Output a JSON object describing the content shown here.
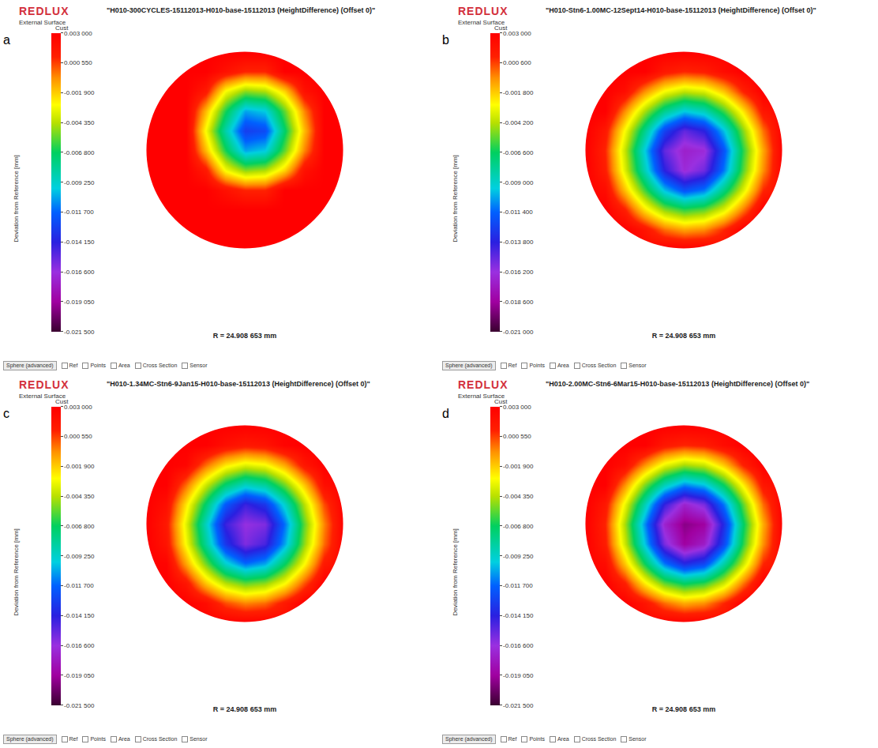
{
  "chart_data": [
    {
      "type": "heatmap",
      "panel_label": "a",
      "logo": "REDLUX",
      "subtitle": "External Surface",
      "colorbar_title": "Cust",
      "title": "\"H010-300CYCLES-15112013-H010-base-15112013 (HeightDifference) (Offset 0)\"",
      "ylabel": "Deviation from Reference [mm]",
      "x": [
        -25,
        -20,
        -15,
        -10,
        -5,
        0,
        5,
        10,
        15,
        20,
        25
      ],
      "y": [
        -25,
        -20,
        -15,
        -10,
        -5,
        0,
        5,
        10,
        15,
        20,
        25
      ],
      "z": [
        [
          null,
          null,
          null,
          null,
          0.003,
          0.003,
          0.003,
          null,
          null,
          null,
          null
        ],
        [
          null,
          null,
          0.003,
          0.003,
          0.003,
          0.003,
          0.003,
          0.003,
          0.003,
          null,
          null
        ],
        [
          null,
          0.003,
          0.003,
          0.003,
          0.003,
          0.003,
          0.003,
          0.003,
          0.003,
          0.003,
          null
        ],
        [
          null,
          0.003,
          0.003,
          0.003,
          0.002,
          0.001,
          0.001,
          0.003,
          0.003,
          0.003,
          null
        ],
        [
          0.003,
          0.003,
          0.003,
          0.0015,
          -0.003,
          -0.005,
          -0.0045,
          -0.002,
          0.002,
          0.003,
          0.003
        ],
        [
          0.003,
          0.003,
          0.003,
          -0.0015,
          -0.0065,
          -0.0105,
          -0.0098,
          -0.0055,
          -0.0005,
          0.003,
          0.003
        ],
        [
          0.003,
          0.003,
          0.003,
          -0.003,
          -0.0085,
          -0.013,
          -0.0125,
          -0.007,
          -0.0015,
          0.003,
          0.003
        ],
        [
          null,
          0.003,
          0.003,
          -0.0015,
          -0.0065,
          -0.0105,
          -0.0098,
          -0.0055,
          -0.0005,
          0.003,
          null
        ],
        [
          null,
          0.003,
          0.003,
          0.0015,
          -0.003,
          -0.005,
          -0.0045,
          -0.002,
          0.002,
          0.003,
          null
        ],
        [
          null,
          null,
          0.003,
          0.003,
          0.002,
          0.001,
          0.001,
          0.003,
          0.003,
          null,
          null
        ],
        [
          null,
          null,
          null,
          null,
          0.003,
          0.003,
          0.003,
          null,
          null,
          null,
          null
        ]
      ],
      "xlim": [
        -30,
        30
      ],
      "ylim": [
        -30,
        30
      ],
      "grid": false,
      "tick_labels": false,
      "colorbar_range": [
        -0.0215,
        0.003
      ],
      "colorbar_ticks": [
        {
          "value": 0.003,
          "label": "0.003 000"
        },
        {
          "value": 0.00055,
          "label": "0.000 550"
        },
        {
          "value": -0.0019,
          "label": "-0.001 900"
        },
        {
          "value": -0.00435,
          "label": "-0.004 350"
        },
        {
          "value": -0.0068,
          "label": "-0.006 800"
        },
        {
          "value": -0.00925,
          "label": "-0.009 250"
        },
        {
          "value": -0.0117,
          "label": "-0.011 700"
        },
        {
          "value": -0.01415,
          "label": "-0.014 150"
        },
        {
          "value": -0.0166,
          "label": "-0.016 600"
        },
        {
          "value": -0.01905,
          "label": "-0.019 050"
        },
        {
          "value": -0.0215,
          "label": "-0.021 500"
        }
      ],
      "radius": {
        "value": 24.908653,
        "label": "R = 24.908 653 mm"
      },
      "toolbar": [
        "Sphere (advanced)",
        "Ref",
        "Points",
        "Area",
        "Cross Section",
        "Sensor"
      ]
    },
    {
      "type": "heatmap",
      "panel_label": "b",
      "logo": "REDLUX",
      "subtitle": "External Surface",
      "colorbar_title": "Cust",
      "title": "\"H010-Stn6-1.00MC-12Sept14-H010-base-15112013 (HeightDifference) (Offset 0)\"",
      "ylabel": "Deviation from Reference [mm]",
      "x": [
        -25,
        -20,
        -15,
        -10,
        -5,
        0,
        5,
        10,
        15,
        20,
        25
      ],
      "y": [
        -25,
        -20,
        -15,
        -10,
        -5,
        0,
        5,
        10,
        15,
        20,
        25
      ],
      "z": [
        [
          null,
          null,
          null,
          null,
          0.003,
          0.003,
          0.003,
          null,
          null,
          null,
          null
        ],
        [
          null,
          null,
          0.003,
          0.0018,
          -0.0001,
          -0.001,
          -0.0006,
          0.001,
          0.003,
          null,
          null
        ],
        [
          null,
          0.003,
          0.0012,
          -0.0022,
          -0.0048,
          -0.006,
          -0.0054,
          -0.0034,
          -0.0002,
          0.003,
          null
        ],
        [
          null,
          0.0023,
          -0.0016,
          -0.0058,
          -0.0098,
          -0.012,
          -0.011,
          -0.0074,
          -0.0034,
          0.001,
          null
        ],
        [
          0.003,
          0.0013,
          -0.0035,
          -0.0086,
          -0.0138,
          -0.0165,
          -0.0153,
          -0.011,
          -0.0054,
          -0.0006,
          0.003
        ],
        [
          0.003,
          0.001,
          -0.004,
          -0.0095,
          -0.015,
          -0.017,
          -0.0165,
          -0.0119,
          -0.006,
          -0.001,
          0.003
        ],
        [
          0.003,
          0.0016,
          -0.0029,
          -0.0076,
          -0.0125,
          -0.015,
          -0.0138,
          -0.0098,
          -0.0048,
          -0.0001,
          0.003
        ],
        [
          null,
          0.003,
          -0.0006,
          -0.0044,
          -0.0076,
          -0.0095,
          -0.0086,
          -0.0058,
          -0.0022,
          0.0017,
          null
        ],
        [
          null,
          0.003,
          0.0022,
          -0.0006,
          -0.0029,
          -0.004,
          -0.0035,
          -0.0016,
          0.0012,
          0.003,
          null
        ],
        [
          null,
          null,
          0.003,
          0.003,
          0.0016,
          0.001,
          0.0013,
          0.0023,
          0.003,
          null,
          null
        ],
        [
          null,
          null,
          null,
          null,
          0.003,
          0.003,
          0.003,
          null,
          null,
          null,
          null
        ]
      ],
      "xlim": [
        -30,
        30
      ],
      "ylim": [
        -30,
        30
      ],
      "grid": false,
      "tick_labels": false,
      "colorbar_range": [
        -0.021,
        0.003
      ],
      "colorbar_ticks": [
        {
          "value": 0.003,
          "label": "0.003 000"
        },
        {
          "value": 0.0006,
          "label": "0.000 600"
        },
        {
          "value": -0.0018,
          "label": "-0.001 800"
        },
        {
          "value": -0.0042,
          "label": "-0.004 200"
        },
        {
          "value": -0.0066,
          "label": "-0.006 600"
        },
        {
          "value": -0.009,
          "label": "-0.009 000"
        },
        {
          "value": -0.0114,
          "label": "-0.011 400"
        },
        {
          "value": -0.0138,
          "label": "-0.013 800"
        },
        {
          "value": -0.0162,
          "label": "-0.016 200"
        },
        {
          "value": -0.0186,
          "label": "-0.018 600"
        },
        {
          "value": -0.021,
          "label": "-0.021 000"
        }
      ],
      "radius": {
        "value": 24.908653,
        "label": "R = 24.908 653 mm"
      },
      "toolbar": [
        "Sphere (advanced)",
        "Ref",
        "Points",
        "Area",
        "Cross Section",
        "Sensor"
      ]
    },
    {
      "type": "heatmap",
      "panel_label": "c",
      "logo": "REDLUX",
      "subtitle": "External Surface",
      "colorbar_title": "Cust",
      "title": "\"H010-1.34MC-Stn6-9Jan15-H010-base-15112013 (HeightDifference) (Offset 0)\"",
      "ylabel": "Deviation from Reference [mm]",
      "x": [
        -25,
        -20,
        -15,
        -10,
        -5,
        0,
        5,
        10,
        15,
        20,
        25
      ],
      "y": [
        -25,
        -20,
        -15,
        -10,
        -5,
        0,
        5,
        10,
        15,
        20,
        25
      ],
      "z": [
        [
          null,
          null,
          null,
          null,
          0.003,
          0.003,
          0.003,
          null,
          null,
          null,
          null
        ],
        [
          null,
          null,
          0.003,
          0.0023,
          0.0004,
          -0.0005,
          -0.0001,
          0.0015,
          0.003,
          null,
          null
        ],
        [
          null,
          0.003,
          0.0017,
          -0.0017,
          -0.0043,
          -0.0055,
          -0.0049,
          -0.0029,
          0.0003,
          0.003,
          null
        ],
        [
          null,
          0.0028,
          -0.0011,
          -0.0053,
          -0.0093,
          -0.0115,
          -0.0105,
          -0.0069,
          -0.0029,
          0.0015,
          null
        ],
        [
          0.003,
          0.0018,
          -0.003,
          -0.0081,
          -0.0133,
          -0.016,
          -0.0148,
          -0.0105,
          -0.0049,
          -0.0001,
          0.003
        ],
        [
          0.003,
          0.0015,
          -0.0035,
          -0.009,
          -0.0145,
          -0.0165,
          -0.016,
          -0.0114,
          -0.0055,
          -0.0005,
          0.003
        ],
        [
          0.003,
          0.0021,
          -0.0024,
          -0.0071,
          -0.012,
          -0.0145,
          -0.0133,
          -0.0093,
          -0.0043,
          0.0004,
          0.003
        ],
        [
          null,
          0.003,
          -0.0001,
          -0.0039,
          -0.0071,
          -0.009,
          -0.0081,
          -0.0053,
          -0.0017,
          0.0022,
          null
        ],
        [
          null,
          0.003,
          0.0027,
          -0.0001,
          -0.0024,
          -0.0035,
          -0.003,
          -0.0011,
          0.0017,
          0.003,
          null
        ],
        [
          null,
          null,
          0.003,
          0.003,
          0.0021,
          0.0015,
          0.0018,
          0.0028,
          0.003,
          null,
          null
        ],
        [
          null,
          null,
          null,
          null,
          0.003,
          0.003,
          0.003,
          null,
          null,
          null,
          null
        ]
      ],
      "xlim": [
        -30,
        30
      ],
      "ylim": [
        -30,
        30
      ],
      "grid": false,
      "tick_labels": false,
      "colorbar_range": [
        -0.0215,
        0.003
      ],
      "colorbar_ticks": [
        {
          "value": 0.003,
          "label": "0.003 000"
        },
        {
          "value": 0.00055,
          "label": "0.000 550"
        },
        {
          "value": -0.0019,
          "label": "-0.001 900"
        },
        {
          "value": -0.00435,
          "label": "-0.004 350"
        },
        {
          "value": -0.0068,
          "label": "-0.006 800"
        },
        {
          "value": -0.00925,
          "label": "-0.009 250"
        },
        {
          "value": -0.0117,
          "label": "-0.011 700"
        },
        {
          "value": -0.01415,
          "label": "-0.014 150"
        },
        {
          "value": -0.0166,
          "label": "-0.016 600"
        },
        {
          "value": -0.01905,
          "label": "-0.019 050"
        },
        {
          "value": -0.0215,
          "label": "-0.021 500"
        }
      ],
      "radius": {
        "value": 24.908653,
        "label": "R = 24.908 653 mm"
      },
      "toolbar": [
        "Sphere (advanced)",
        "Ref",
        "Points",
        "Area",
        "Cross Section",
        "Sensor"
      ]
    },
    {
      "type": "heatmap",
      "panel_label": "d",
      "logo": "REDLUX",
      "subtitle": "External Surface",
      "colorbar_title": "Cust",
      "title": "\"H010-2.00MC-Stn6-6Mar15-H010-base-15112013 (HeightDifference) (Offset 0)\"",
      "ylabel": "Deviation from Reference [mm]",
      "x": [
        -25,
        -20,
        -15,
        -10,
        -5,
        0,
        5,
        10,
        15,
        20,
        25
      ],
      "y": [
        -25,
        -20,
        -15,
        -10,
        -5,
        0,
        5,
        10,
        15,
        20,
        25
      ],
      "z": [
        [
          null,
          null,
          null,
          null,
          0.003,
          0.003,
          0.003,
          null,
          null,
          null,
          null
        ],
        [
          null,
          null,
          0.003,
          0.0018,
          -0.0001,
          -0.0012,
          -0.0007,
          0.001,
          0.003,
          null,
          null
        ],
        [
          null,
          0.003,
          0.0012,
          -0.0025,
          -0.0055,
          -0.0069,
          -0.0062,
          -0.0039,
          -0.0002,
          0.003,
          null
        ],
        [
          null,
          0.0023,
          -0.0018,
          -0.0067,
          -0.0113,
          -0.0138,
          -0.0127,
          -0.0085,
          -0.0039,
          0.001,
          null
        ],
        [
          0.003,
          0.0013,
          -0.004,
          -0.0099,
          -0.0159,
          -0.019,
          -0.0176,
          -0.0127,
          -0.0062,
          -0.0007,
          0.003
        ],
        [
          0.003,
          0.001,
          -0.0046,
          -0.0109,
          -0.0173,
          -0.0196,
          -0.019,
          -0.0137,
          -0.0069,
          -0.0012,
          0.003
        ],
        [
          0.003,
          0.0016,
          -0.0033,
          -0.0087,
          -0.0144,
          -0.0173,
          -0.0159,
          -0.0113,
          -0.0055,
          -0.0001,
          0.003
        ],
        [
          null,
          0.003,
          -0.0007,
          -0.0051,
          -0.0087,
          -0.0109,
          -0.0099,
          -0.0067,
          -0.0025,
          0.0017,
          null
        ],
        [
          null,
          0.003,
          0.0022,
          -0.0007,
          -0.0033,
          -0.0046,
          -0.004,
          -0.0018,
          0.0012,
          0.003,
          null
        ],
        [
          null,
          null,
          0.003,
          0.003,
          0.0016,
          0.001,
          0.0013,
          0.0023,
          0.003,
          null,
          null
        ],
        [
          null,
          null,
          null,
          null,
          0.003,
          0.003,
          0.003,
          null,
          null,
          null,
          null
        ]
      ],
      "xlim": [
        -30,
        30
      ],
      "ylim": [
        -30,
        30
      ],
      "grid": false,
      "tick_labels": false,
      "colorbar_range": [
        -0.0215,
        0.003
      ],
      "colorbar_ticks": [
        {
          "value": 0.003,
          "label": "0.003 000"
        },
        {
          "value": 0.00055,
          "label": "0.000 550"
        },
        {
          "value": -0.0019,
          "label": "-0.001 900"
        },
        {
          "value": -0.00435,
          "label": "-0.004 350"
        },
        {
          "value": -0.0068,
          "label": "-0.006 800"
        },
        {
          "value": -0.00925,
          "label": "-0.009 250"
        },
        {
          "value": -0.0117,
          "label": "-0.011 700"
        },
        {
          "value": -0.01415,
          "label": "-0.014 150"
        },
        {
          "value": -0.0166,
          "label": "-0.016 600"
        },
        {
          "value": -0.01905,
          "label": "-0.019 050"
        },
        {
          "value": -0.0215,
          "label": "-0.021 500"
        }
      ],
      "radius": {
        "value": 24.908653,
        "label": "R = 24.908 653 mm"
      },
      "toolbar": [
        "Sphere (advanced)",
        "Ref",
        "Points",
        "Area",
        "Cross Section",
        "Sensor"
      ]
    }
  ]
}
